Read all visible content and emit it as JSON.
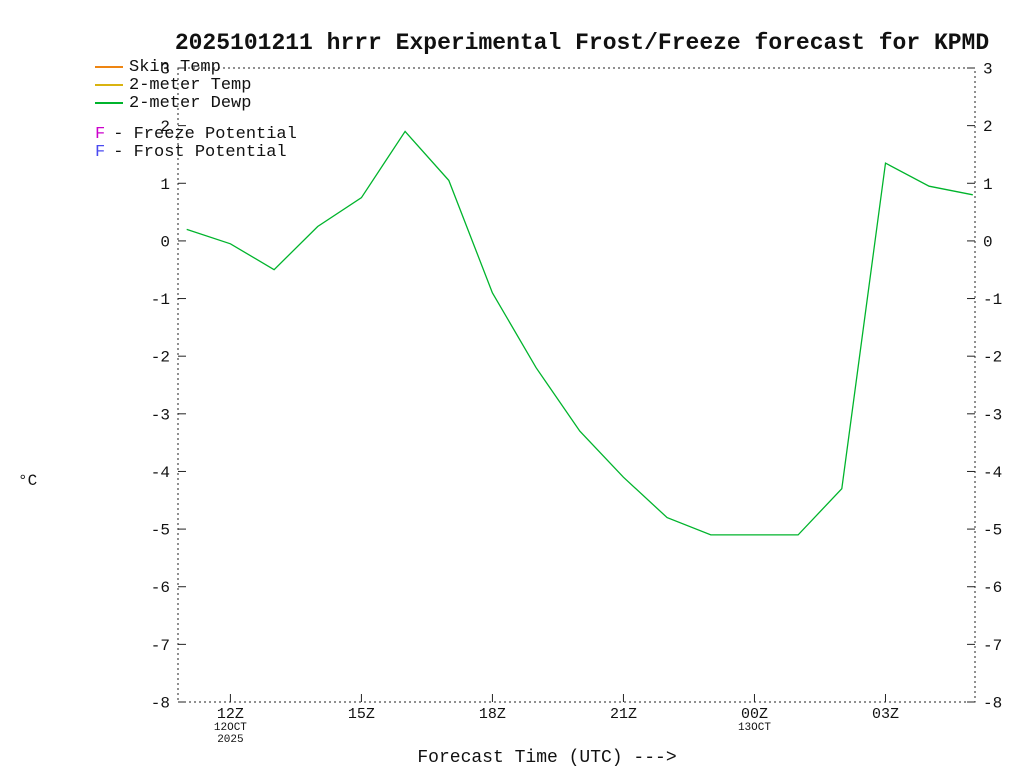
{
  "title": "2025101211 hrrr Experimental Frost/Freeze forecast for KPMD",
  "ylabel": "°C",
  "xlabel": "Forecast Time (UTC) --->",
  "legend": [
    {
      "name": "skin-temp",
      "label": "Skin Temp",
      "swatch_color": "#ee8512"
    },
    {
      "name": "2m-temp",
      "label": "2-meter Temp",
      "swatch_color": "#d9b310"
    },
    {
      "name": "2m-dewp",
      "label": "2-meter Dewp",
      "swatch_color": "#00b42c"
    },
    {
      "name": "freeze-potential",
      "prefix": "F",
      "prefix_color": "#cc00cc",
      "label": "- Freeze Potential",
      "gap_before": true
    },
    {
      "name": "frost-potential",
      "prefix": "F",
      "prefix_color": "#4a4af0",
      "label": "- Frost Potential"
    }
  ],
  "chart_data": {
    "type": "line",
    "title": "2025101211 hrrr Experimental Frost/Freeze forecast for KPMD",
    "xlabel": "Forecast Time (UTC) --->",
    "ylabel": "°C",
    "ylim": [
      -8,
      3
    ],
    "xlim": [
      10.8,
      29.05
    ],
    "grid": false,
    "frame_style": "dashed",
    "y_ticks": [
      3,
      2,
      1,
      0,
      -1,
      -2,
      -3,
      -4,
      -5,
      -6,
      -7,
      -8
    ],
    "x_ticks": [
      {
        "hour": 12,
        "label": "12Z",
        "sub": [
          "12OCT",
          "2025"
        ]
      },
      {
        "hour": 15,
        "label": "15Z",
        "sub": []
      },
      {
        "hour": 18,
        "label": "18Z",
        "sub": []
      },
      {
        "hour": 21,
        "label": "21Z",
        "sub": []
      },
      {
        "hour": 24,
        "label": "00Z",
        "sub": [
          "13OCT"
        ]
      },
      {
        "hour": 27,
        "label": "03Z",
        "sub": []
      }
    ],
    "series": [
      {
        "name": "2-meter Dewp",
        "color": "#00b42c",
        "x": [
          11,
          12,
          13,
          14,
          15,
          16,
          17,
          18,
          19,
          20,
          21,
          22,
          23,
          24,
          25,
          26,
          27,
          28,
          29
        ],
        "y": [
          0.2,
          -0.05,
          -0.5,
          0.25,
          0.75,
          1.9,
          1.05,
          -0.9,
          -2.2,
          -3.3,
          -4.1,
          -4.8,
          -5.1,
          -5.1,
          -5.1,
          -4.3,
          1.35,
          0.95,
          0.8
        ]
      }
    ]
  }
}
